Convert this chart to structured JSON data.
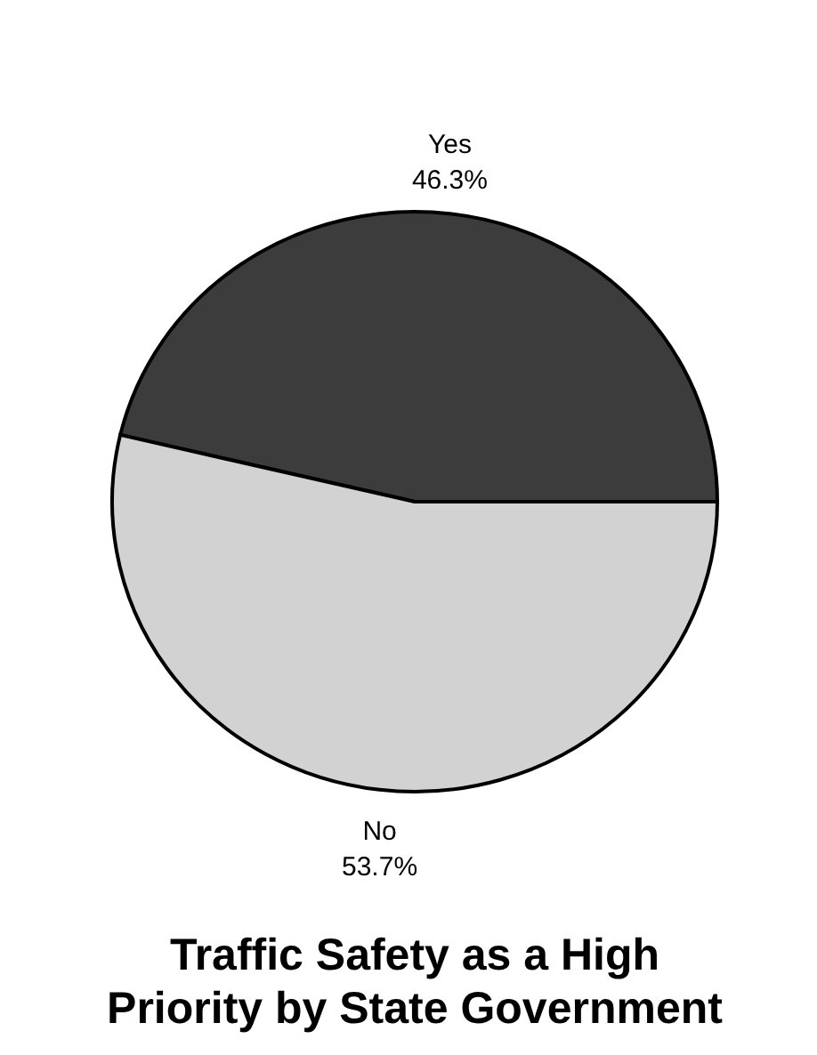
{
  "chart_data": {
    "type": "pie",
    "title": "Traffic Safety as a High Priority by State Government",
    "categories": [
      "Yes",
      "No"
    ],
    "values": [
      46.3,
      53.7
    ],
    "colors": [
      "#3c3c3c",
      "#d2d2d2"
    ],
    "value_labels": [
      "46.3%",
      "53.7%"
    ]
  }
}
